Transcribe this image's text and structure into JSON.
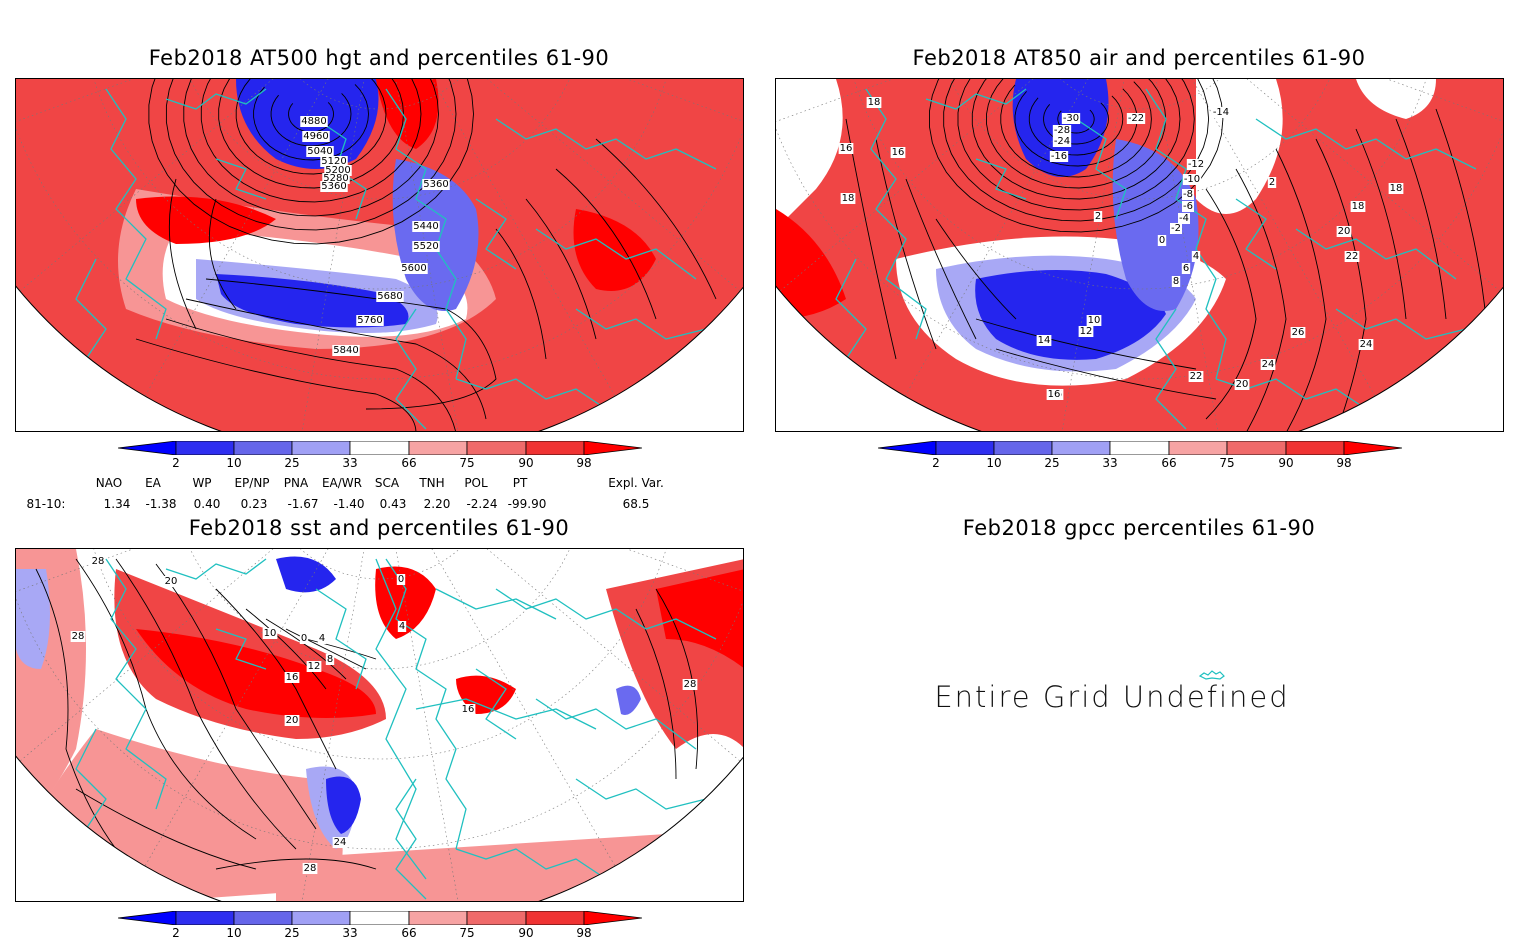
{
  "panels": [
    {
      "title": "Feb2018 AT500 hgt and percentiles 61-90",
      "contour_labels": [
        "4880",
        "4960",
        "5040",
        "5120",
        "5200",
        "5280",
        "5360",
        "5360",
        "5440",
        "5520",
        "5600",
        "5680",
        "5760",
        "5840"
      ]
    },
    {
      "title": "Feb2018 AT850 air and percentiles 61-90",
      "contour_labels": [
        "18",
        "16",
        "16",
        "18",
        "-30",
        "-28",
        "-24",
        "-22",
        "-16",
        "-14",
        "-12",
        "-10",
        "-8",
        "-6",
        "-4",
        "-2",
        "0",
        "2",
        "2",
        "4",
        "6",
        "8",
        "10",
        "12",
        "14",
        "16",
        "18",
        "18",
        "20",
        "22",
        "24",
        "26",
        "24",
        "22",
        "20",
        "16"
      ]
    },
    {
      "title": "Feb2018 sst and percentiles 61-90",
      "contour_labels": [
        "28",
        "20",
        "28",
        "10",
        "0",
        "0",
        "4",
        "4",
        "8",
        "12",
        "16",
        "20",
        "24",
        "28",
        "28",
        "16"
      ]
    },
    {
      "title": "Feb2018 gpcc percentiles 61-90",
      "message": "Entire Grid Undefined"
    }
  ],
  "colorbar": {
    "labels": [
      "2",
      "10",
      "25",
      "33",
      "66",
      "75",
      "90",
      "98"
    ],
    "colors": [
      "#0000ff",
      "#2e2ef0",
      "#6666ea",
      "#a0a0f5",
      "#ffffff",
      "#f7a3a3",
      "#f06a6a",
      "#f03333",
      "#ff0000"
    ]
  },
  "teleconnections": {
    "headers": [
      "NAO",
      "EA",
      "WP",
      "EP/NP",
      "PNA",
      "EA/WR",
      "SCA",
      "TNH",
      "POL",
      "PT",
      "Expl. Var."
    ],
    "row_label": "81-10:",
    "values": [
      "1.34",
      "-1.38",
      "0.40",
      "0.23",
      "-1.67",
      "-1.40",
      "0.43",
      "2.20",
      "-2.24",
      "-99.90",
      "68.5"
    ]
  },
  "colors": {
    "warm": "#ff0000",
    "warm2": "#f04545",
    "warm3": "#f79595",
    "cold": "#2525ee",
    "cold2": "#6a6af0",
    "cold3": "#a8a8f5",
    "coast": "#20c0c0",
    "contour": "#000000"
  }
}
